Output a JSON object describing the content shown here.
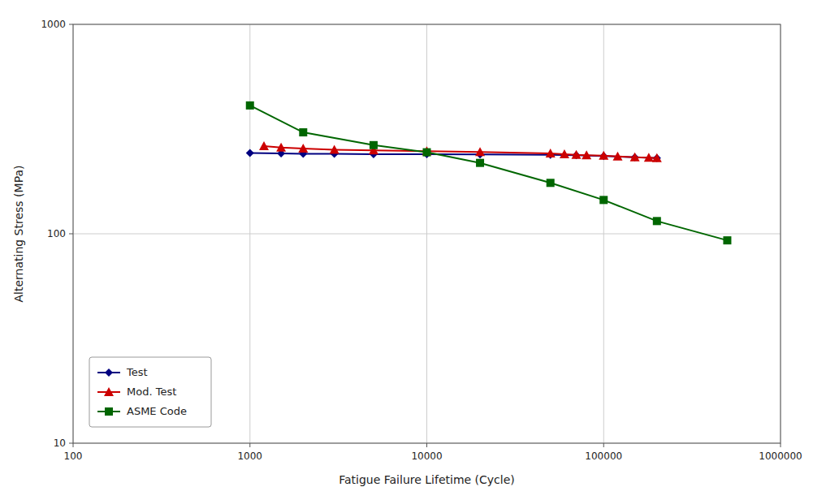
{
  "chart_data": {
    "type": "line",
    "xlabel": "Fatigue Failure Lifetime (Cycle)",
    "ylabel": "Alternating Stress (MPa)",
    "log": true,
    "grid": true,
    "legend": "lower left",
    "xlim": [
      100,
      1000000
    ],
    "ylim": [
      10,
      1000
    ],
    "xticks": [
      100,
      1000,
      10000,
      100000,
      1000000
    ],
    "yticks": [
      10,
      100,
      1000
    ],
    "series": [
      {
        "name": "Test",
        "color": "#000080",
        "marker": "diamond",
        "line_style": "solid",
        "x": [
          1000,
          1500,
          2000,
          3000,
          5000,
          10000,
          20000,
          50000,
          70000,
          100000,
          150000,
          200000
        ],
        "values": [
          243,
          242,
          241,
          241,
          240,
          240,
          239,
          238,
          237,
          235,
          232,
          230
        ]
      },
      {
        "name": "Mod. Test",
        "color": "#cc0000",
        "marker": "triangle",
        "line_style": "solid",
        "x": [
          1200,
          1500,
          2000,
          3000,
          5000,
          10000,
          20000,
          50000,
          60000,
          70000,
          80000,
          100000,
          120000,
          150000,
          180000,
          200000
        ],
        "values": [
          262,
          258,
          255,
          252,
          250,
          248,
          246,
          242,
          240,
          238,
          237,
          236,
          234,
          232,
          231,
          230
        ]
      },
      {
        "name": "ASME Code",
        "color": "#006600",
        "marker": "square",
        "line_style": "solid",
        "x": [
          1000,
          2000,
          5000,
          10000,
          20000,
          50000,
          100000,
          200000,
          500000
        ],
        "values": [
          410,
          305,
          265,
          245,
          218,
          175,
          145,
          115,
          93
        ]
      }
    ]
  }
}
